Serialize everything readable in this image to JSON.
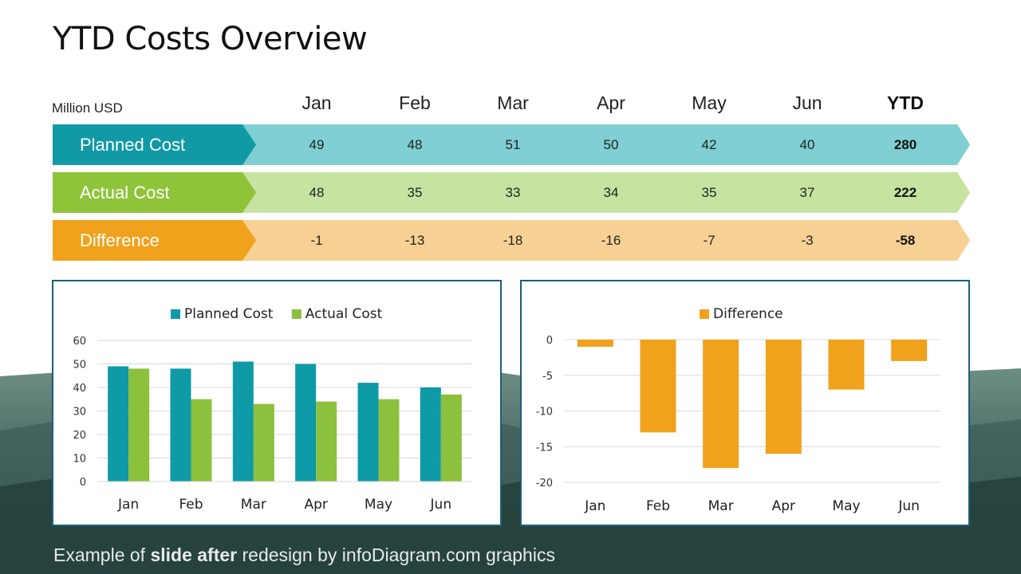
{
  "slide": {
    "title": "YTD Costs Overview",
    "unit": "Million USD"
  },
  "table": {
    "columns": [
      "Jan",
      "Feb",
      "Mar",
      "Apr",
      "May",
      "Jun",
      "YTD"
    ],
    "rows": [
      {
        "label": "Planned Cost",
        "values": [
          "49",
          "48",
          "51",
          "50",
          "42",
          "40",
          "280"
        ],
        "label_color": "#1199a6",
        "band_color": "#7fcfd3"
      },
      {
        "label": "Actual Cost",
        "values": [
          "48",
          "35",
          "33",
          "34",
          "35",
          "37",
          "222"
        ],
        "label_color": "#8fc33a",
        "band_color": "#c6e3a0"
      },
      {
        "label": "Difference",
        "values": [
          "-1",
          "-13",
          "-18",
          "-16",
          "-7",
          "-3",
          "-58"
        ],
        "label_color": "#f0a21c",
        "band_color": "#f7d193"
      }
    ]
  },
  "chart_data": [
    {
      "type": "bar",
      "categories": [
        "Jan",
        "Feb",
        "Mar",
        "Apr",
        "May",
        "Jun"
      ],
      "series": [
        {
          "name": "Planned Cost",
          "values": [
            49,
            48,
            51,
            50,
            42,
            40
          ],
          "color": "#0e9aa7"
        },
        {
          "name": "Actual Cost",
          "values": [
            48,
            35,
            33,
            34,
            35,
            37
          ],
          "color": "#8dc03c"
        }
      ],
      "ylim": [
        0,
        60
      ],
      "yticks": [
        0,
        10,
        20,
        30,
        40,
        50,
        60
      ],
      "grid": true,
      "legend": "top"
    },
    {
      "type": "bar",
      "categories": [
        "Jan",
        "Feb",
        "Mar",
        "Apr",
        "May",
        "Jun"
      ],
      "series": [
        {
          "name": "Difference",
          "values": [
            -1,
            -13,
            -18,
            -16,
            -7,
            -3
          ],
          "color": "#f0a21c"
        }
      ],
      "ylim": [
        -20,
        0
      ],
      "yticks": [
        0,
        -5,
        -10,
        -15,
        -20
      ],
      "grid": true,
      "legend": "top"
    }
  ],
  "footer": {
    "prefix": "Example of ",
    "bold": "slide after",
    "suffix": " redesign by infoDiagram.com graphics"
  }
}
